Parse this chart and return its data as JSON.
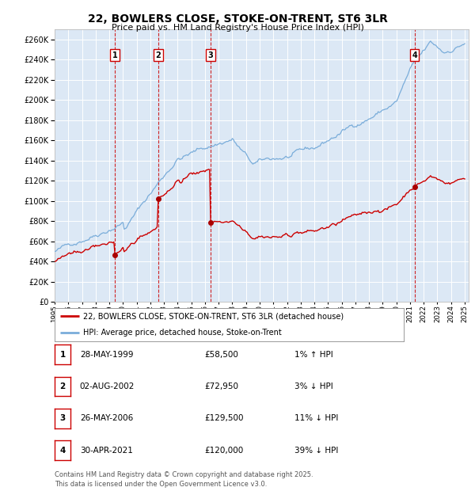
{
  "title": "22, BOWLERS CLOSE, STOKE-ON-TRENT, ST6 3LR",
  "subtitle": "Price paid vs. HM Land Registry's House Price Index (HPI)",
  "plot_bg_color": "#dce8f5",
  "ylim": [
    0,
    270000
  ],
  "ytick_step": 20000,
  "legend1": "22, BOWLERS CLOSE, STOKE-ON-TRENT, ST6 3LR (detached house)",
  "legend2": "HPI: Average price, detached house, Stoke-on-Trent",
  "line1_color": "#cc0000",
  "line2_color": "#7aadda",
  "vline_color": "#cc0000",
  "dot_color": "#aa0000",
  "sale_markers": [
    {
      "label": "1",
      "x": 1999.41,
      "price": 58500
    },
    {
      "label": "2",
      "x": 2002.58,
      "price": 72950
    },
    {
      "label": "3",
      "x": 2006.4,
      "price": 129500
    },
    {
      "label": "4",
      "x": 2021.33,
      "price": 120000
    }
  ],
  "table_rows": [
    {
      "num": "1",
      "date": "28-MAY-1999",
      "price": "£58,500",
      "hpi": "1% ↑ HPI"
    },
    {
      "num": "2",
      "date": "02-AUG-2002",
      "price": "£72,950",
      "hpi": "3% ↓ HPI"
    },
    {
      "num": "3",
      "date": "26-MAY-2006",
      "price": "£129,500",
      "hpi": "11% ↓ HPI"
    },
    {
      "num": "4",
      "date": "30-APR-2021",
      "price": "£120,000",
      "hpi": "39% ↓ HPI"
    }
  ],
  "footer": "Contains HM Land Registry data © Crown copyright and database right 2025.\nThis data is licensed under the Open Government Licence v3.0."
}
